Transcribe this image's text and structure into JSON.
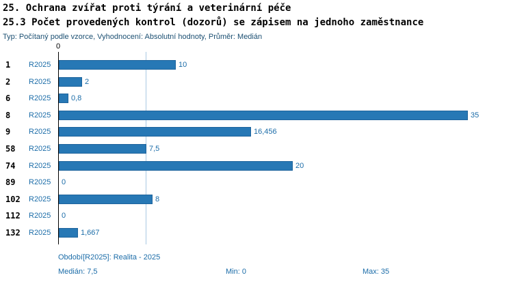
{
  "header": {
    "title1": "25. Ochrana zvířat proti týrání a veterinární péče",
    "title2": "25.3 Počet provedených kontrol (dozorů) se zápisem na jednoho zaměstnance",
    "subtitle": "Typ: Počítaný podle vzorce, Vyhodnocení: Absolutní hodnoty, Průměr: Medián"
  },
  "chart_data": {
    "type": "bar",
    "orientation": "horizontal",
    "title": "25.3 Počet provedených kontrol (dozorů) se zápisem na jednoho zaměstnance",
    "categories": [
      "1",
      "2",
      "6",
      "8",
      "9",
      "58",
      "74",
      "89",
      "102",
      "112",
      "132"
    ],
    "series_label": "R2025",
    "values": [
      10,
      2,
      0.8,
      35,
      16.456,
      7.5,
      20,
      0,
      8,
      0,
      1.667
    ],
    "value_labels": [
      "10",
      "2",
      "0,8",
      "35",
      "16,456",
      "7,5",
      "20",
      "0",
      "8",
      "0",
      "1,667"
    ],
    "xlim": [
      0,
      35
    ],
    "zero_tick_label": "0",
    "median_line_value": 7.5,
    "grid": "single-median-gridline",
    "legend_position": "none",
    "bar_color": "#2778b5",
    "gridline_color": "#a9c9e2",
    "label_color": "#1b6ca8"
  },
  "footer": {
    "period": "Období[R2025]: Realita - 2025",
    "median": "Medián: 7,5",
    "min": "Min: 0",
    "max": "Max: 35"
  }
}
